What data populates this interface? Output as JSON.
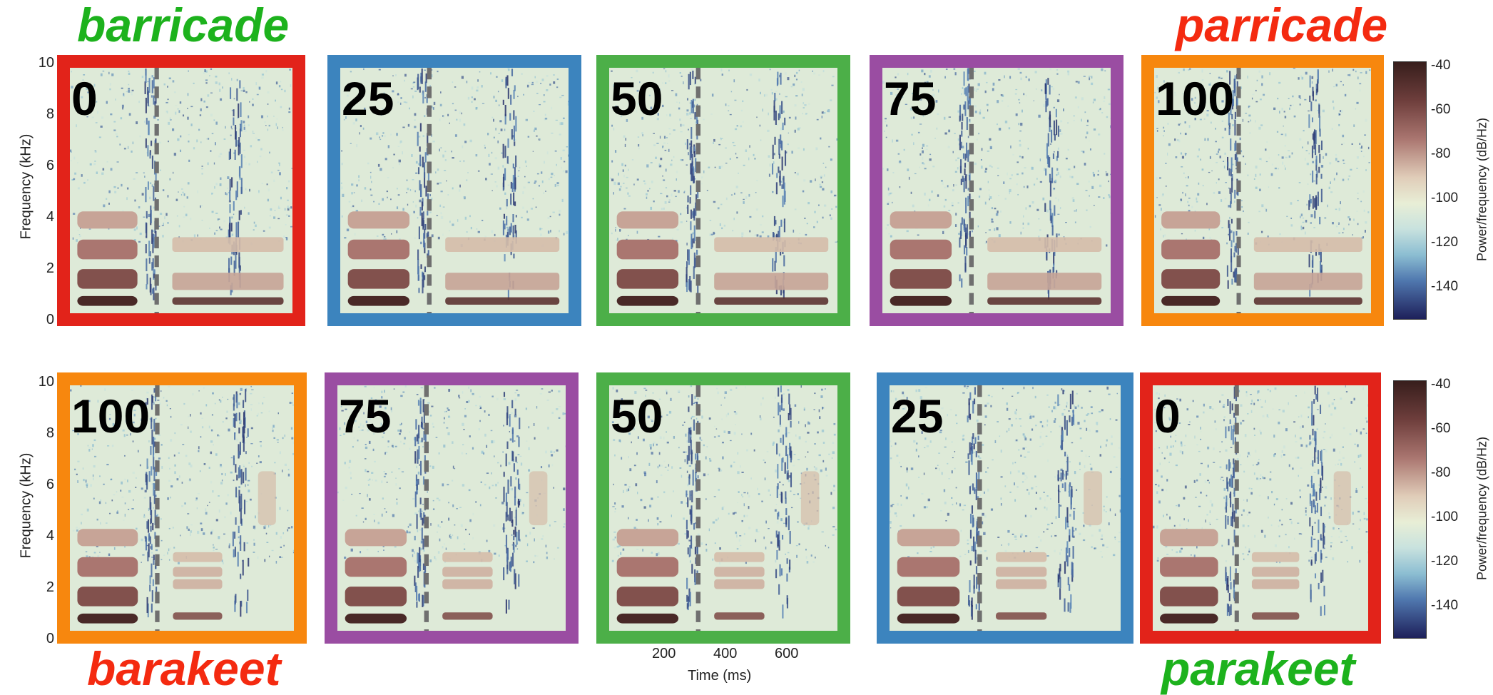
{
  "colors": {
    "red": "#E2231A",
    "blue": "#3C84BE",
    "green": "#4CAF48",
    "purple": "#9A4DA2",
    "orange": "#F7870E",
    "word_green": "#1DB21D",
    "word_red": "#F42A10"
  },
  "words": {
    "top_left": "barricade",
    "top_right": "parricade",
    "bottom_left": "barakeet",
    "bottom_right": "parakeet"
  },
  "rows": [
    {
      "panels": [
        {
          "label": "0",
          "color": "red"
        },
        {
          "label": "25",
          "color": "blue"
        },
        {
          "label": "50",
          "color": "green"
        },
        {
          "label": "75",
          "color": "purple"
        },
        {
          "label": "100",
          "color": "orange"
        }
      ]
    },
    {
      "panels": [
        {
          "label": "100",
          "color": "orange"
        },
        {
          "label": "75",
          "color": "purple"
        },
        {
          "label": "50",
          "color": "green"
        },
        {
          "label": "25",
          "color": "blue"
        },
        {
          "label": "0",
          "color": "red"
        }
      ]
    }
  ],
  "axes": {
    "ylabel": "Frequency (kHz)",
    "yticks": [
      "10",
      "8",
      "6",
      "4",
      "2",
      "0"
    ],
    "xlabel": "Time (ms)",
    "xticks": [
      "200",
      "400",
      "600"
    ],
    "colorbar_label": "Power/frequency (dB/Hz)",
    "colorbar_ticks": [
      "-40",
      "-60",
      "-80",
      "-100",
      "-120",
      "-140"
    ]
  }
}
